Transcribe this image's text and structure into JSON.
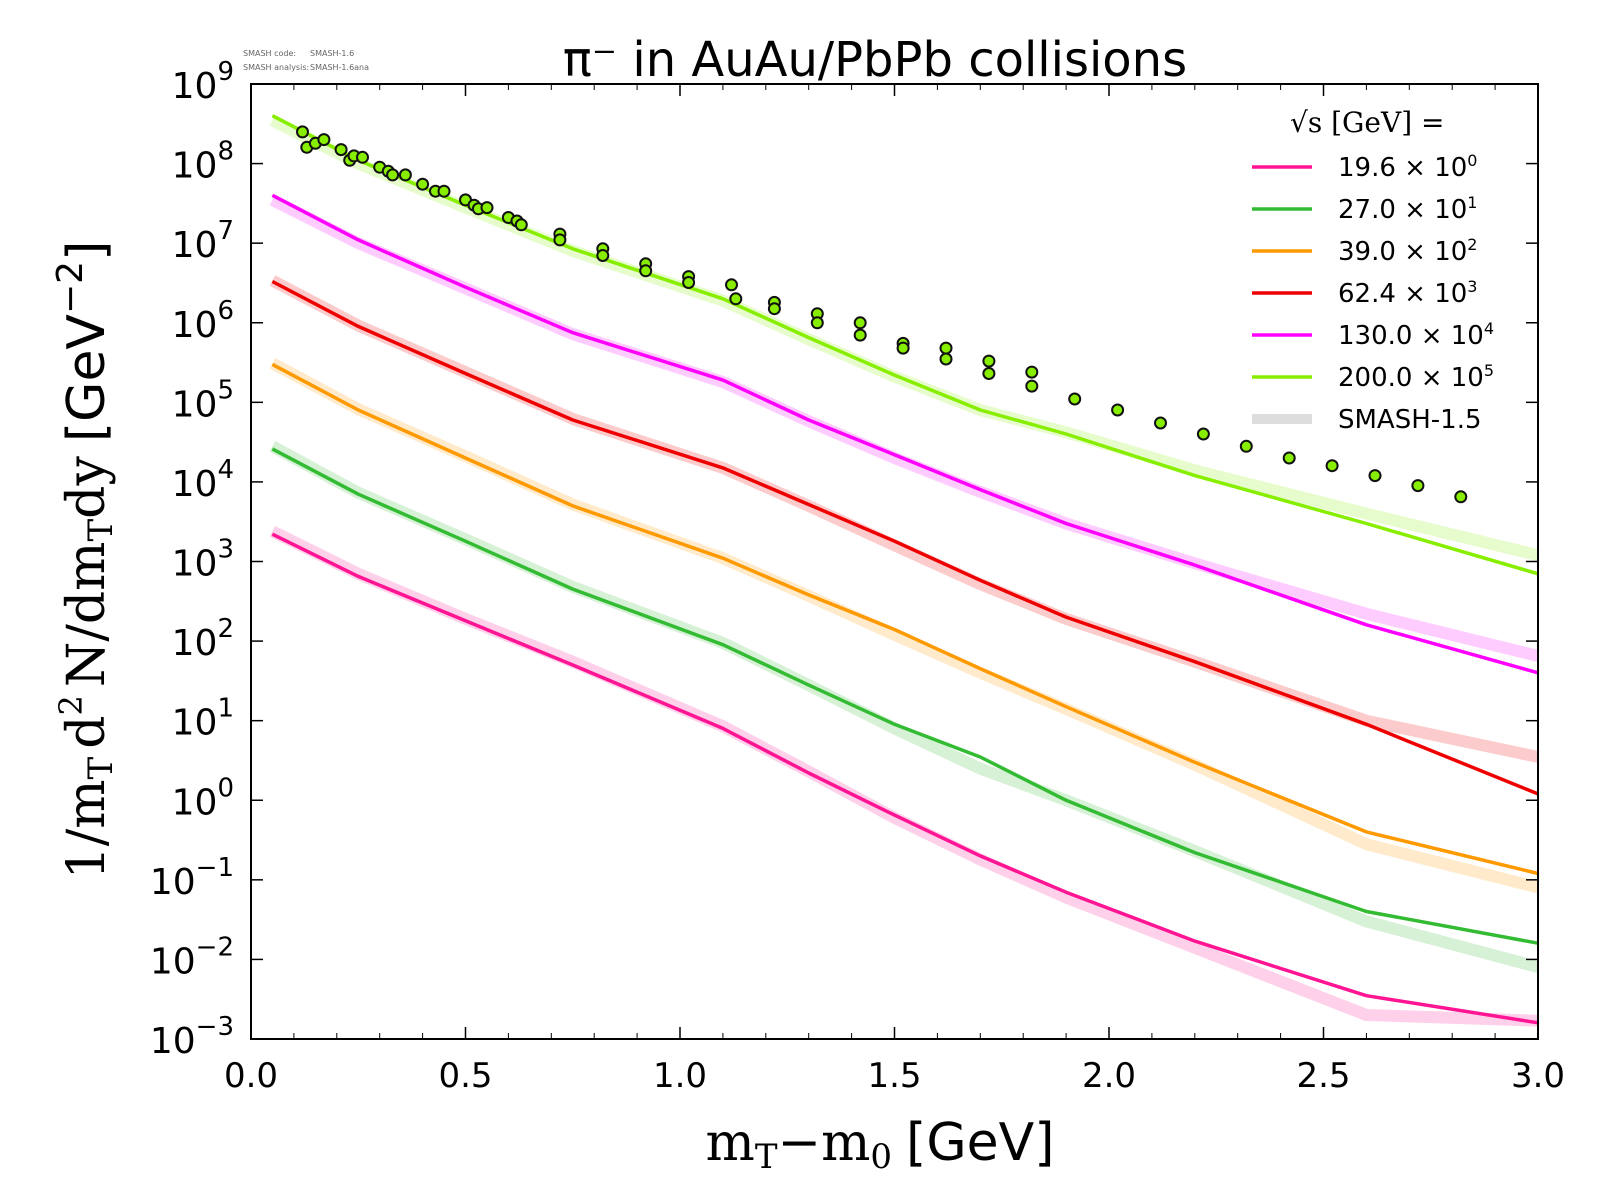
{
  "watermark": {
    "line1_label": "SMASH code:",
    "line1_value": "SMASH-1.6",
    "line2_label": "SMASH analysis:",
    "line2_value": "SMASH-1.6ana"
  },
  "chart_data": {
    "type": "line",
    "title": "π⁻ in AuAu/PbPb collisions",
    "xlabel_math": "m",
    "xlabel_sub1": "T",
    "xlabel_minus": "−m",
    "xlabel_sub2": "0",
    "xlabel_unit": "[GeV]",
    "ylabel": "1/mT d2 N/dmTdy [GeV−2]",
    "xlim": [
      0.0,
      3.0
    ],
    "ylim_log10": [
      -3,
      9
    ],
    "yscale": "log",
    "grid": false,
    "legend_position": "top-right",
    "legend_title": "√s  [GeV] =",
    "x_ticks": [
      "0.0",
      "0.5",
      "1.0",
      "1.5",
      "2.0",
      "2.5",
      "3.0"
    ],
    "x_tick_values": [
      0.0,
      0.5,
      1.0,
      1.5,
      2.0,
      2.5,
      3.0
    ],
    "y_tick_exponents": [
      "9",
      "8",
      "7",
      "6",
      "5",
      "4",
      "3",
      "2",
      "1",
      "0",
      "−1",
      "−2",
      "−3"
    ],
    "y_tick_base": "10",
    "x": [
      0.05,
      0.25,
      0.5,
      0.75,
      1.1,
      1.3,
      1.5,
      1.7,
      1.9,
      2.2,
      2.6,
      3.0
    ],
    "series": [
      {
        "name": "19.6",
        "scale": "10",
        "scale_exp": "0",
        "color": "#ff1493",
        "values": [
          2200,
          650,
          180,
          50,
          8,
          2.2,
          0.65,
          0.2,
          0.07,
          0.017,
          0.0035,
          0.0016
        ],
        "ref_values": [
          2400,
          700,
          190,
          55,
          8.5,
          2.3,
          0.6,
          0.18,
          0.06,
          0.014,
          0.002,
          0.0017
        ]
      },
      {
        "name": "27.0",
        "scale": "10",
        "scale_exp": "1",
        "color": "#33bb33",
        "values": [
          26000,
          7000,
          1800,
          450,
          90,
          28,
          9,
          3.5,
          1.0,
          0.22,
          0.04,
          0.016
        ],
        "ref_values": [
          28000,
          7300,
          1900,
          480,
          95,
          28,
          8,
          2.5,
          1.0,
          0.23,
          0.03,
          0.008
        ]
      },
      {
        "name": "39.0",
        "scale": "10",
        "scale_exp": "2",
        "color": "#ff9900",
        "values": [
          300000,
          80000,
          20000,
          5000,
          1100,
          380,
          140,
          45,
          15,
          3.0,
          0.4,
          0.12
        ],
        "ref_values": [
          310000,
          82000,
          21000,
          5200,
          1100,
          370,
          120,
          40,
          14,
          2.8,
          0.28,
          0.08
        ]
      },
      {
        "name": "62.4",
        "scale": "10",
        "scale_exp": "3",
        "color": "#ee0000",
        "values": [
          3300000,
          900000,
          230000,
          60000,
          15000,
          5200,
          1800,
          580,
          200,
          55,
          9,
          1.2
        ],
        "ref_values": [
          3400000,
          920000,
          240000,
          62000,
          15000,
          5000,
          1600,
          520,
          190,
          55,
          10,
          3.5
        ]
      },
      {
        "name": "130.0",
        "scale": "10",
        "scale_exp": "4",
        "color": "#ff00ff",
        "values": [
          40000000,
          11000000,
          2800000,
          750000,
          190000,
          60000,
          22000,
          8000,
          3000,
          900,
          160,
          40
        ],
        "ref_values": [
          35000000,
          10000000,
          2700000,
          720000,
          180000,
          58000,
          20000,
          7500,
          3000,
          950,
          220,
          65
        ]
      },
      {
        "name": "200.0",
        "scale": "10",
        "scale_exp": "5",
        "color": "#88ee00",
        "values": [
          400000000,
          110000000,
          30000000,
          8500000,
          2000000,
          650000,
          220000,
          80000,
          40000,
          12000,
          3000,
          700
        ],
        "ref_values": [
          350000000,
          100000000,
          28000000,
          8000000,
          1900000,
          620000,
          210000,
          80000,
          42000,
          14000,
          4000,
          1200
        ]
      }
    ],
    "reference_label": "SMASH-1.5",
    "reference_color": "#dddddd",
    "scatter": {
      "color": "#88ee00",
      "edge": "#111111",
      "x": [
        0.12,
        0.13,
        0.15,
        0.17,
        0.21,
        0.23,
        0.24,
        0.26,
        0.3,
        0.32,
        0.33,
        0.36,
        0.4,
        0.43,
        0.45,
        0.5,
        0.52,
        0.53,
        0.55,
        0.6,
        0.62,
        0.63,
        0.72,
        0.72,
        0.82,
        0.82,
        0.92,
        0.92,
        1.02,
        1.02,
        1.12,
        1.13,
        1.22,
        1.22,
        1.32,
        1.32,
        1.42,
        1.42,
        1.52,
        1.52,
        1.62,
        1.62,
        1.72,
        1.72,
        1.82,
        1.82,
        1.92,
        2.02,
        2.12,
        2.22,
        2.32,
        2.42,
        2.52,
        2.62,
        2.72,
        2.82
      ],
      "y": [
        250000000,
        160000000,
        180000000,
        200000000,
        150000000,
        110000000,
        125000000,
        120000000,
        90000000,
        80000000,
        72000000,
        72000000,
        55000000,
        45000000,
        45000000,
        35000000,
        30000000,
        27000000,
        28000000,
        21000000,
        19000000,
        17000000,
        13000000,
        11000000,
        8500000,
        7000000,
        5500000,
        4500000,
        3800000,
        3200000,
        3000000,
        2000000,
        1800000,
        1500000,
        1300000,
        1000000,
        1000000,
        700000,
        550000,
        480000,
        480000,
        350000,
        330000,
        230000,
        240000,
        160000,
        110000,
        80000,
        55000,
        40000,
        28000,
        20000,
        16000,
        12000,
        9000,
        6500
      ]
    }
  }
}
